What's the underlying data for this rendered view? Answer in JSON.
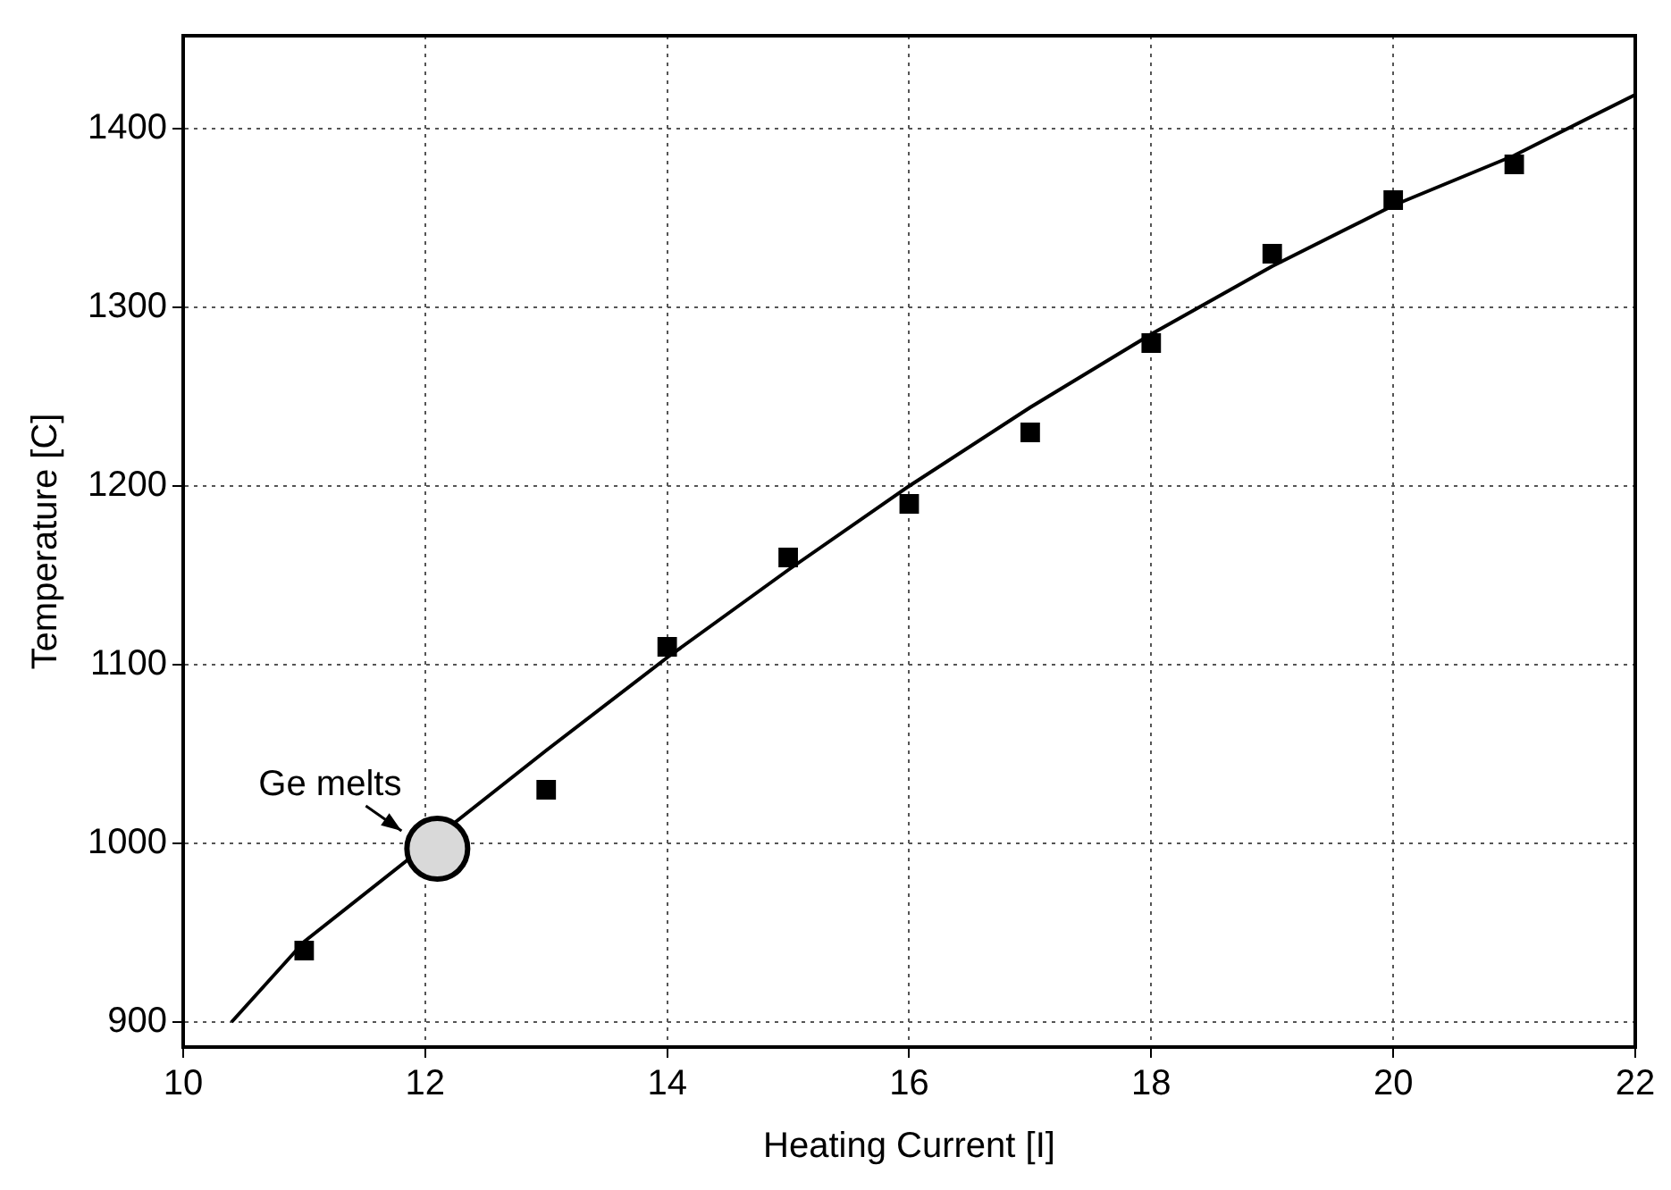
{
  "chart_data": {
    "type": "scatter",
    "xlabel": "Heating Current [I]",
    "ylabel": "Temperature [C]",
    "xlim": [
      10,
      22
    ],
    "xticks": [
      10,
      12,
      14,
      16,
      18,
      20,
      22
    ],
    "ylim": [
      886,
      1452
    ],
    "yticks": [
      900,
      1000,
      1100,
      1200,
      1300,
      1400
    ],
    "grid": true,
    "series": [
      {
        "color": "#000000",
        "marker": "square",
        "x": [
          11,
          13,
          14,
          15,
          16,
          17,
          18,
          19,
          20,
          21
        ],
        "values": [
          940,
          1030,
          1110,
          1160,
          1190,
          1230,
          1280,
          1330,
          1360,
          1380
        ]
      },
      {
        "type": "line",
        "color": "#000000",
        "marker": "none",
        "x": [
          10.4,
          11,
          13,
          14,
          15,
          16,
          17,
          18,
          19,
          20,
          21,
          22
        ],
        "values": [
          900,
          945,
          1052,
          1104,
          1153,
          1200,
          1244,
          1285,
          1323,
          1357,
          1385,
          1419
        ]
      },
      {
        "type": "scatter",
        "color": "#d9d9d9",
        "marker": "circle",
        "x": [
          12.1
        ],
        "values": [
          997
        ]
      }
    ],
    "annotations": [
      {
        "text": "Ge melts",
        "x": 12.1,
        "y": 997
      }
    ]
  }
}
